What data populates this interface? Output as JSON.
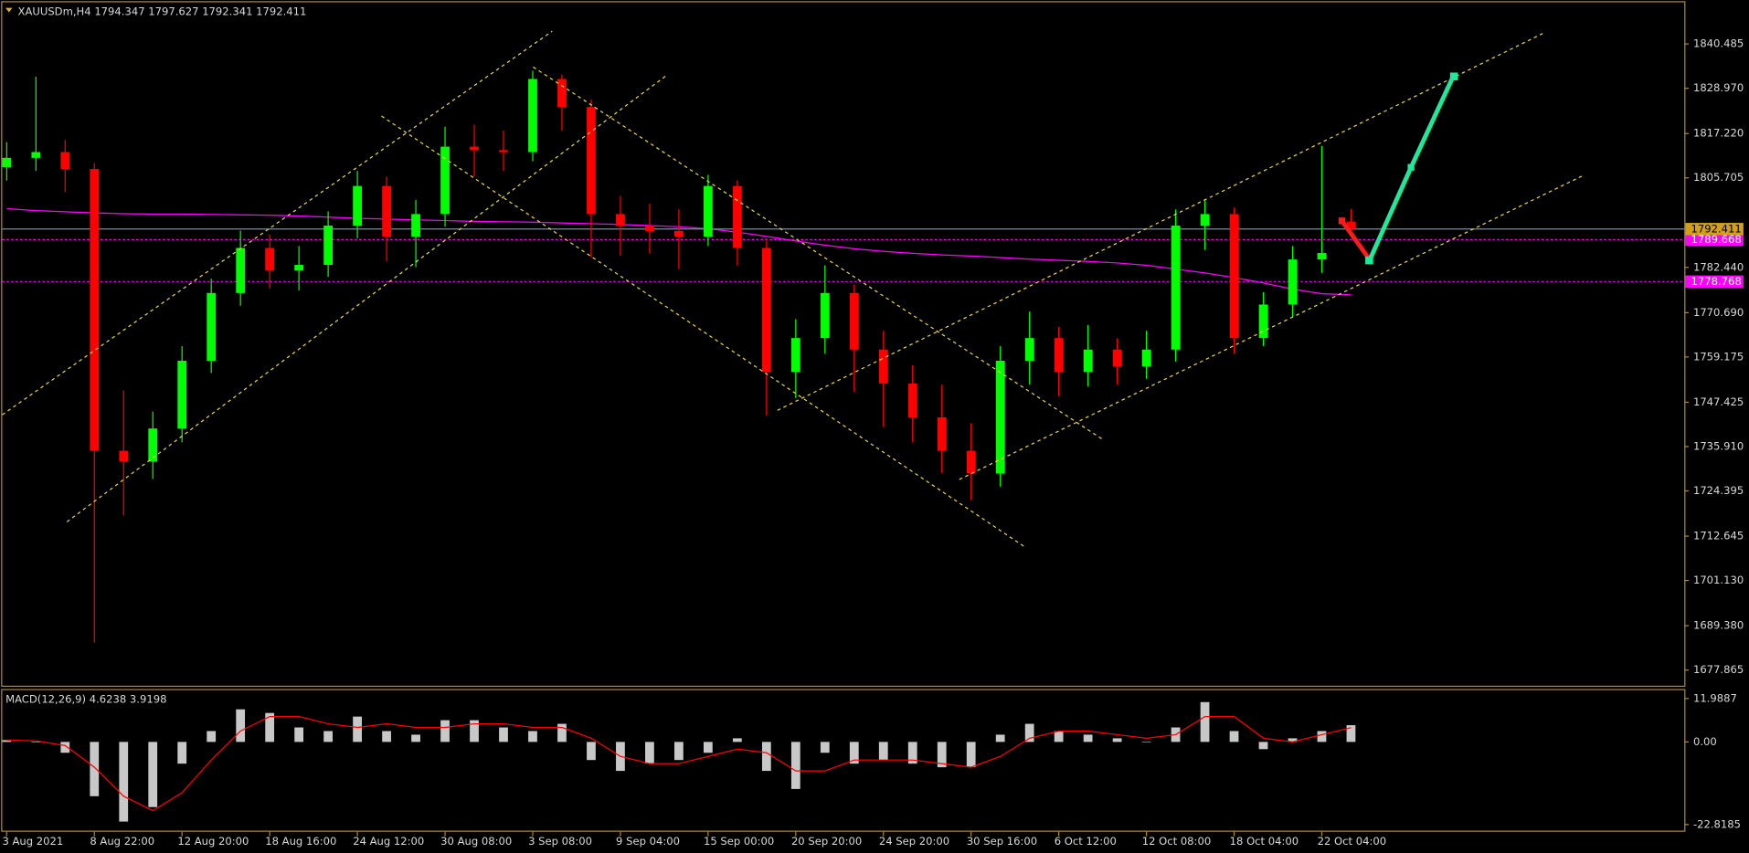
{
  "chart_data": {
    "type": "candlestick",
    "symbol": "XAUUSDm,H4",
    "categories": [
      "3 Aug 2021",
      null,
      null,
      "8 Aug 22:00",
      null,
      null,
      "12 Aug 20:00",
      null,
      null,
      "18 Aug 16:00",
      null,
      null,
      "24 Aug 12:00",
      null,
      null,
      "30 Aug 08:00",
      null,
      null,
      "3 Sep 08:00",
      null,
      null,
      "9 Sep 04:00",
      null,
      null,
      "15 Sep 00:00",
      null,
      null,
      "20 Sep 20:00",
      null,
      null,
      "24 Sep 20:00",
      null,
      null,
      "30 Sep 16:00",
      null,
      null,
      "6 Oct 12:00",
      null,
      null,
      "12 Oct 08:00",
      null,
      null,
      "18 Oct 04:00",
      null,
      null,
      "22 Oct 04:00",
      null
    ],
    "open": [
      1808.5,
      1810.9,
      1812.4,
      1808.0,
      1734.8,
      1732.0,
      1740.6,
      1758.2,
      1775.8,
      1787.5,
      1781.6,
      1783.1,
      1793.3,
      1803.6,
      1790.4,
      1796.3,
      1813.8,
      1812.9,
      1812.4,
      1831.4,
      1824.1,
      1796.3,
      1793.3,
      1791.9,
      1790.4,
      1803.6,
      1787.5,
      1755.3,
      1764.1,
      1775.8,
      1761.1,
      1752.3,
      1743.5,
      1734.8,
      1728.9,
      1758.2,
      1764.1,
      1755.3,
      1761.1,
      1756.7,
      1761.1,
      1793.3,
      1796.3,
      1764.1,
      1772.8,
      1784.5,
      1794.347
    ],
    "high": [
      1815.0,
      1832.0,
      1815.5,
      1809.5,
      1750.5,
      1745.0,
      1762.0,
      1779.5,
      1792.0,
      1791.0,
      1788.0,
      1797.0,
      1807.5,
      1806.0,
      1800.0,
      1819.0,
      1819.5,
      1818.0,
      1833.5,
      1832.5,
      1826.0,
      1801.0,
      1799.0,
      1797.5,
      1806.5,
      1805.0,
      1790.0,
      1769.0,
      1783.0,
      1778.0,
      1766.0,
      1757.0,
      1752.0,
      1742.0,
      1762.0,
      1771.0,
      1767.0,
      1767.5,
      1764.0,
      1766.0,
      1797.5,
      1800.0,
      1798.0,
      1776.0,
      1788.0,
      1814.0,
      1797.627
    ],
    "low": [
      1805.0,
      1807.5,
      1802.0,
      1685.0,
      1718.0,
      1727.5,
      1737.0,
      1755.0,
      1772.5,
      1777.0,
      1776.5,
      1780.0,
      1790.0,
      1784.0,
      1782.5,
      1793.0,
      1806.0,
      1807.5,
      1810.0,
      1818.0,
      1785.0,
      1785.5,
      1786.0,
      1782.0,
      1788.0,
      1783.0,
      1744.0,
      1748.5,
      1760.0,
      1750.0,
      1741.0,
      1737.0,
      1729.0,
      1722.0,
      1725.5,
      1752.0,
      1749.0,
      1751.5,
      1752.0,
      1753.5,
      1758.0,
      1787.0,
      1760.0,
      1762.0,
      1769.5,
      1781.0,
      1792.341
    ],
    "close": [
      1810.9,
      1812.4,
      1808.0,
      1734.8,
      1732.0,
      1740.6,
      1758.2,
      1775.8,
      1787.5,
      1781.6,
      1783.1,
      1793.3,
      1803.6,
      1790.4,
      1796.3,
      1813.8,
      1812.9,
      1812.4,
      1831.4,
      1824.1,
      1796.3,
      1793.3,
      1791.9,
      1790.4,
      1803.6,
      1787.5,
      1755.3,
      1764.1,
      1775.8,
      1761.1,
      1752.3,
      1743.5,
      1734.8,
      1728.9,
      1758.2,
      1764.1,
      1755.3,
      1761.1,
      1756.7,
      1761.1,
      1793.3,
      1796.3,
      1764.1,
      1772.8,
      1784.5,
      1786.2,
      1792.411
    ],
    "up_color": "#00ff00",
    "down_color": "#ff0000",
    "close_line_color": "#7a8c99",
    "close_label_color": "#d4a017",
    "ylim": [
      1673.8,
      1851.3
    ],
    "yticks": [
      1840.485,
      {
        "value": 1828.97,
        "label": "1828.970"
      },
      {
        "value": 1817.22,
        "label": "1817.220"
      },
      1805.705,
      {
        "value": 1782.44,
        "label": "1782.440"
      },
      {
        "value": 1770.69,
        "label": "1770.690"
      },
      1759.175,
      1747.425,
      {
        "value": 1735.91,
        "label": "1735.910"
      },
      1724.395,
      1712.645,
      {
        "value": 1701.13,
        "label": "1701.130"
      },
      {
        "value": 1689.38,
        "label": "1689.380"
      },
      1677.865
    ],
    "ma": [
      {
        "color": "#ff00ff",
        "values": [
          1797.7,
          1797.2,
          1796.9,
          1796.6,
          1796.4,
          1796.3,
          1796.3,
          1796.2,
          1796.1,
          1796.0,
          1795.8,
          1795.5,
          1795.2,
          1795.0,
          1794.8,
          1794.6,
          1794.4,
          1794.3,
          1794.2,
          1794.0,
          1793.8,
          1793.6,
          1793.3,
          1793.0,
          1792.5,
          1791.6,
          1790.5,
          1789.3,
          1788.2,
          1787.3,
          1786.6,
          1786.1,
          1785.7,
          1785.4,
          1785.0,
          1784.6,
          1784.3,
          1784.0,
          1783.6,
          1783.0,
          1782.0,
          1781.0,
          1779.8,
          1778.4,
          1776.8,
          1775.6,
          1775.3
        ]
      }
    ],
    "levels": [
      {
        "value": 1789.668,
        "color": "#ff00ff"
      },
      {
        "value": 1778.768,
        "color": "#ff00ff"
      }
    ],
    "macd": {
      "title": "MACD(12,26,9)",
      "histogram": [
        0.5,
        0,
        -3,
        -15,
        -22,
        -18,
        -6,
        3,
        9,
        8,
        4,
        3,
        7,
        3,
        2,
        6,
        6,
        4,
        3,
        5,
        -5,
        -8,
        -6,
        -5,
        -3,
        1,
        -8,
        -13,
        -3,
        -6,
        -5,
        -6,
        -7,
        -7,
        2,
        5,
        3,
        2,
        1,
        0,
        4,
        11,
        3,
        -2,
        1,
        3,
        4.6238
      ],
      "signal": [
        0.5,
        0.3,
        -1,
        -7,
        -15,
        -19,
        -14,
        -5,
        3,
        7,
        7,
        5,
        4,
        5,
        4,
        4,
        5,
        5,
        4,
        4,
        1,
        -4,
        -6,
        -6,
        -4,
        -2,
        -3,
        -8,
        -8,
        -5,
        -5,
        -5,
        -6,
        -7,
        -4,
        1,
        3,
        3,
        2,
        1,
        2,
        7,
        7,
        1,
        0,
        2,
        3.9198
      ],
      "hist_color": "#c8c8c8",
      "signal_color": "#ff0000",
      "ylim": [
        -24.5,
        14.3
      ],
      "yticks": [
        11.9887,
        {
          "value": 0,
          "label": "0.00"
        },
        -22.8185
      ]
    }
  }
}
